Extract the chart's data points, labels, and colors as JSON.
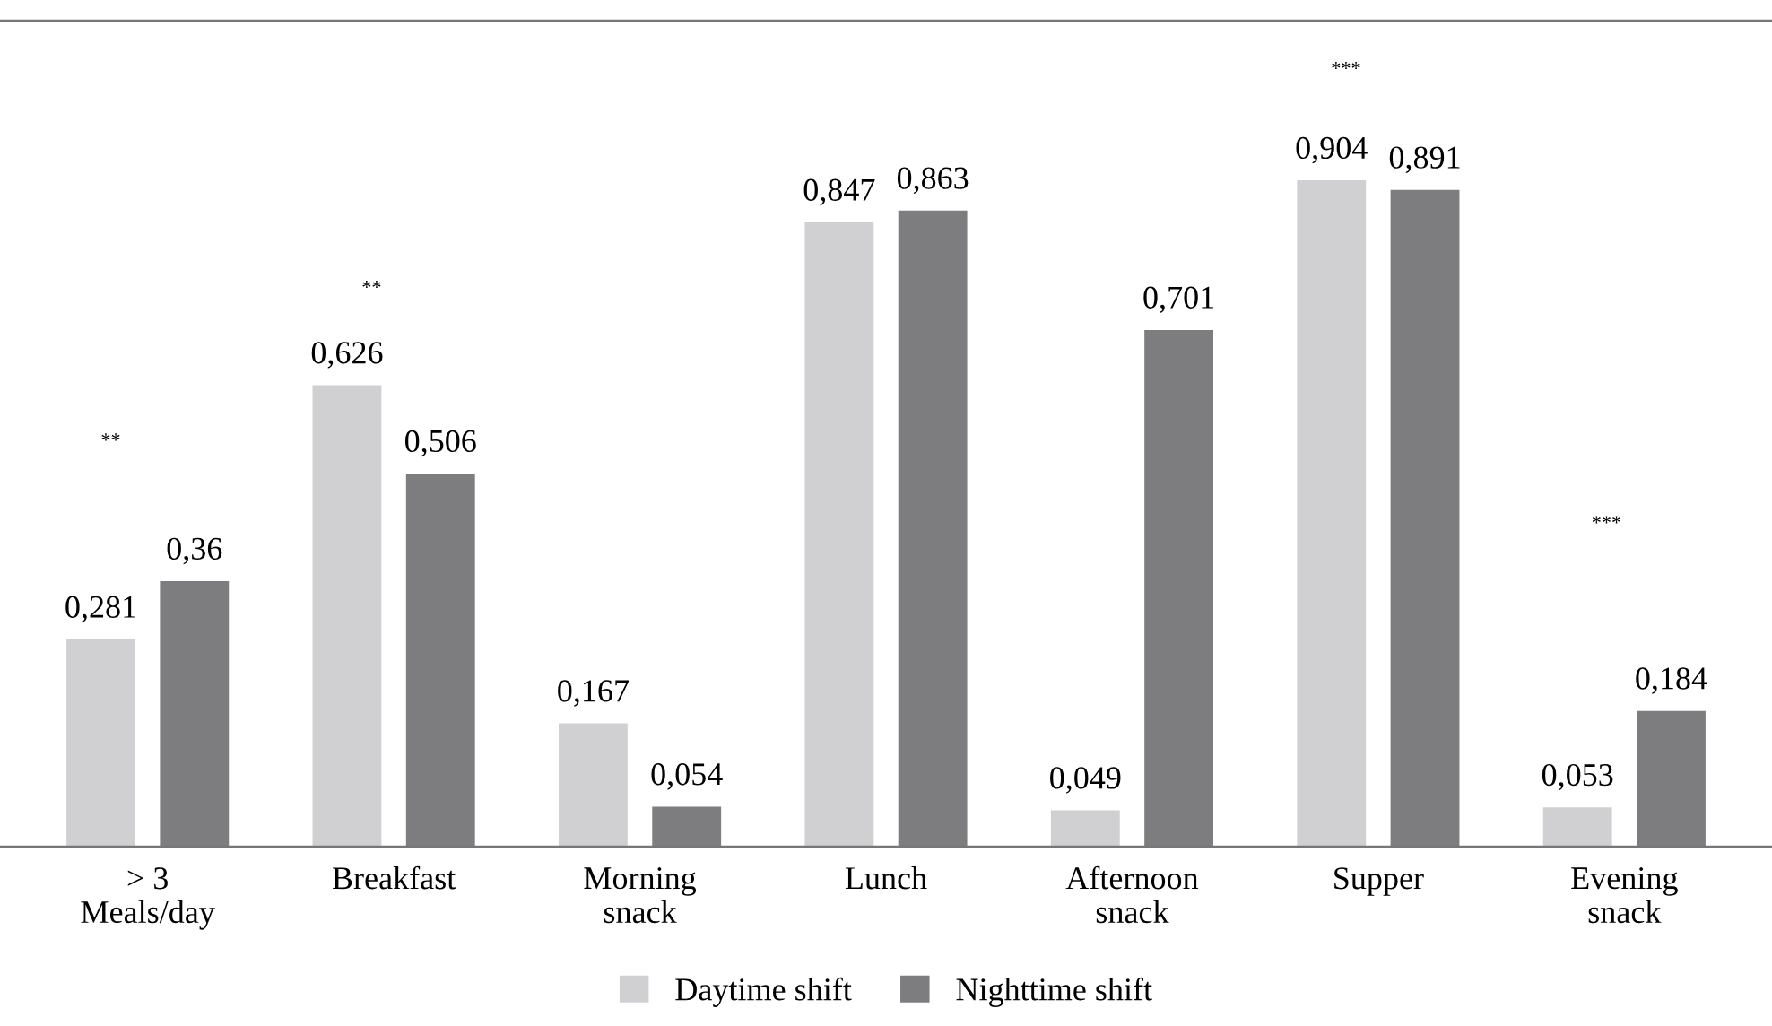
{
  "chart_data": {
    "type": "bar",
    "categories": [
      "> 3\nMeals/day",
      "Breakfast",
      "Morning\nsnack",
      "Lunch",
      "Afternoon\nsnack",
      "Supper",
      "Evening\nsnack"
    ],
    "series": [
      {
        "name": "Daytime shift",
        "color": "#d0d0d2",
        "values": [
          0.281,
          0.626,
          0.167,
          0.847,
          0.049,
          0.904,
          0.053
        ],
        "value_labels": [
          "0,281",
          "0,626",
          "0,167",
          "0,847",
          "0,049",
          "0,904",
          "0,053"
        ]
      },
      {
        "name": "Nighttime shift",
        "color": "#7d7d80",
        "values": [
          0.36,
          0.506,
          0.054,
          0.863,
          0.701,
          0.891,
          0.184
        ],
        "value_labels": [
          "0,36",
          "0,506",
          "0,054",
          "0,863",
          "0,701",
          "0,891",
          "0,184"
        ]
      }
    ],
    "annotations": [
      "**",
      "**",
      "***",
      "***"
    ],
    "legend": "bottom",
    "grid": false
  }
}
